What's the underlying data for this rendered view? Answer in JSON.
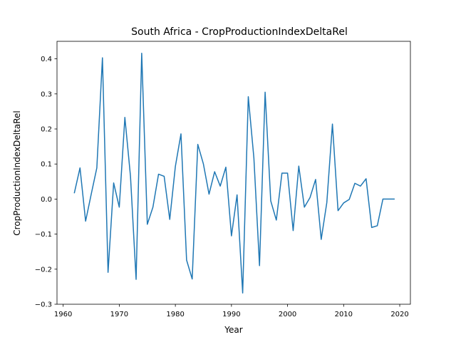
{
  "chart_data": {
    "type": "line",
    "title": "South Africa - CropProductionIndexDeltaRel",
    "xlabel": "Year",
    "ylabel": "CropProductionIndexDeltaRel",
    "xlim": [
      1958.9,
      2021.9
    ],
    "ylim": [
      -0.3,
      0.45
    ],
    "xticks": [
      1960,
      1970,
      1980,
      1990,
      2000,
      2010,
      2020
    ],
    "xtick_labels": [
      "1960",
      "1970",
      "1980",
      "1990",
      "2000",
      "2010",
      "2020"
    ],
    "yticks": [
      -0.3,
      -0.2,
      -0.1,
      0.0,
      0.1,
      0.2,
      0.3,
      0.4
    ],
    "ytick_labels": [
      "−0.3",
      "−0.2",
      "−0.1",
      "0.0",
      "0.1",
      "0.2",
      "0.3",
      "0.4"
    ],
    "grid": false,
    "series": [
      {
        "color": "#1f77b4",
        "x": [
          1962,
          1963,
          1964,
          1965,
          1966,
          1967,
          1968,
          1969,
          1970,
          1971,
          1972,
          1973,
          1974,
          1975,
          1976,
          1977,
          1978,
          1979,
          1980,
          1981,
          1982,
          1983,
          1984,
          1985,
          1986,
          1987,
          1988,
          1989,
          1990,
          1991,
          1992,
          1993,
          1994,
          1995,
          1996,
          1997,
          1998,
          1999,
          2000,
          2001,
          2002,
          2003,
          2004,
          2005,
          2006,
          2007,
          2008,
          2009,
          2010,
          2011,
          2012,
          2013,
          2014,
          2015,
          2016,
          2017,
          2018,
          2019
        ],
        "values": [
          0.018,
          0.089,
          -0.063,
          0.014,
          0.089,
          0.403,
          -0.209,
          0.046,
          -0.023,
          0.233,
          0.065,
          -0.229,
          0.416,
          -0.072,
          -0.023,
          0.071,
          0.065,
          -0.058,
          0.093,
          0.186,
          -0.174,
          -0.228,
          0.156,
          0.1,
          0.014,
          0.078,
          0.037,
          0.091,
          -0.105,
          0.012,
          -0.268,
          0.292,
          0.117,
          -0.19,
          0.305,
          -0.005,
          -0.06,
          0.074,
          0.074,
          -0.09,
          0.094,
          -0.023,
          0.004,
          0.056,
          -0.115,
          -0.01,
          0.214,
          -0.033,
          -0.011,
          -0.001,
          0.045,
          0.037,
          0.058,
          -0.081,
          -0.076,
          0.0,
          0.0,
          0.0
        ]
      }
    ]
  }
}
